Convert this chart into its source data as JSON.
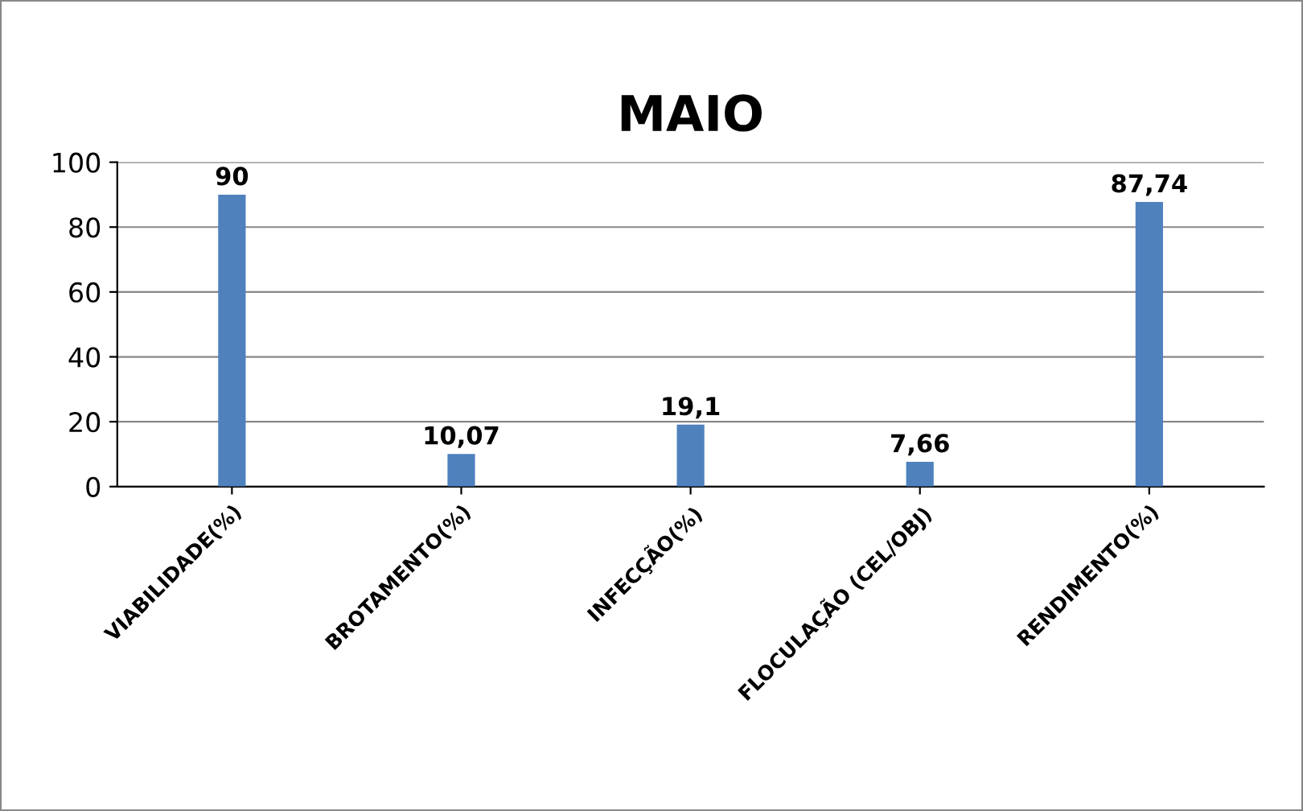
{
  "chart_data": {
    "type": "bar",
    "title": "MAIO",
    "categories": [
      "VIABILIDADE(%)",
      "BROTAMENTO(%)",
      "INFECÇÃO(%)",
      "FLOCULAÇÃO (CEL/OBJ)",
      "RENDIMENTO(%)"
    ],
    "values": [
      90,
      10.07,
      19.1,
      7.66,
      87.74
    ],
    "value_labels": [
      "90",
      "10,07",
      "19,1",
      "7,66",
      "87,74"
    ],
    "color": "#4f81bd",
    "ylim": [
      0,
      100
    ],
    "yticks": [
      0,
      20,
      40,
      60,
      80,
      100
    ],
    "grid": "y"
  }
}
